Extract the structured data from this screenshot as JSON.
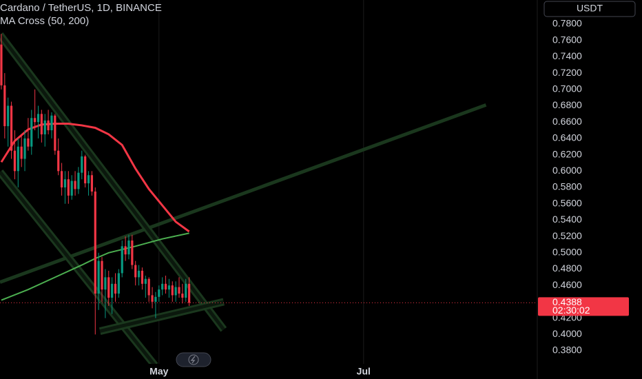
{
  "chart_data": {
    "type": "candlestick",
    "title": "Cardano / TetherUS, 1D, BINANCE",
    "indicator": "MA Cross (50, 200)",
    "currency": "USDT",
    "last_price": {
      "value": 0.4388,
      "label": "0.4388"
    },
    "countdown": "02:30:02",
    "up_color": "#089981",
    "down_color": "#f23645",
    "x": [
      0,
      1,
      2,
      3,
      4,
      5,
      6,
      7,
      8,
      9,
      10,
      11,
      12,
      13,
      14,
      15,
      16,
      17,
      18,
      19,
      20,
      21,
      22,
      23,
      24,
      25,
      26,
      27,
      28,
      29,
      30,
      31,
      32,
      33,
      34,
      35,
      36,
      37,
      38,
      39,
      40,
      41,
      42,
      43,
      44,
      45,
      46,
      47,
      48,
      49,
      50,
      51,
      52,
      53,
      54,
      55,
      56
    ],
    "ohlc": [
      [
        0.755,
        0.768,
        0.7,
        0.705
      ],
      [
        0.705,
        0.72,
        0.64,
        0.655
      ],
      [
        0.655,
        0.69,
        0.63,
        0.68
      ],
      [
        0.68,
        0.685,
        0.615,
        0.625
      ],
      [
        0.625,
        0.65,
        0.59,
        0.6
      ],
      [
        0.6,
        0.64,
        0.58,
        0.63
      ],
      [
        0.63,
        0.645,
        0.605,
        0.615
      ],
      [
        0.615,
        0.65,
        0.6,
        0.64
      ],
      [
        0.64,
        0.665,
        0.625,
        0.63
      ],
      [
        0.63,
        0.675,
        0.62,
        0.665
      ],
      [
        0.665,
        0.7,
        0.65,
        0.66
      ],
      [
        0.66,
        0.68,
        0.64,
        0.67
      ],
      [
        0.67,
        0.675,
        0.635,
        0.645
      ],
      [
        0.645,
        0.67,
        0.63,
        0.662
      ],
      [
        0.662,
        0.675,
        0.645,
        0.65
      ],
      [
        0.65,
        0.672,
        0.64,
        0.668
      ],
      [
        0.668,
        0.67,
        0.62,
        0.625
      ],
      [
        0.625,
        0.64,
        0.595,
        0.6
      ],
      [
        0.6,
        0.61,
        0.57,
        0.58
      ],
      [
        0.58,
        0.6,
        0.56,
        0.59
      ],
      [
        0.59,
        0.6,
        0.56,
        0.57
      ],
      [
        0.57,
        0.595,
        0.565,
        0.588
      ],
      [
        0.588,
        0.6,
        0.57,
        0.578
      ],
      [
        0.578,
        0.605,
        0.572,
        0.598
      ],
      [
        0.598,
        0.625,
        0.59,
        0.618
      ],
      [
        0.618,
        0.62,
        0.58,
        0.585
      ],
      [
        0.585,
        0.6,
        0.57,
        0.595
      ],
      [
        0.595,
        0.6,
        0.57,
        0.575
      ],
      [
        0.575,
        0.58,
        0.4,
        0.45
      ],
      [
        0.45,
        0.5,
        0.43,
        0.49
      ],
      [
        0.49,
        0.495,
        0.44,
        0.455
      ],
      [
        0.455,
        0.48,
        0.42,
        0.47
      ],
      [
        0.47,
        0.478,
        0.435,
        0.445
      ],
      [
        0.445,
        0.47,
        0.425,
        0.462
      ],
      [
        0.462,
        0.475,
        0.44,
        0.45
      ],
      [
        0.45,
        0.48,
        0.445,
        0.475
      ],
      [
        0.475,
        0.515,
        0.47,
        0.508
      ],
      [
        0.508,
        0.52,
        0.49,
        0.498
      ],
      [
        0.498,
        0.522,
        0.492,
        0.515
      ],
      [
        0.515,
        0.522,
        0.48,
        0.485
      ],
      [
        0.485,
        0.49,
        0.46,
        0.47
      ],
      [
        0.47,
        0.485,
        0.46,
        0.478
      ],
      [
        0.478,
        0.482,
        0.455,
        0.462
      ],
      [
        0.462,
        0.472,
        0.445,
        0.468
      ],
      [
        0.468,
        0.47,
        0.44,
        0.448
      ],
      [
        0.448,
        0.458,
        0.432,
        0.44
      ],
      [
        0.44,
        0.452,
        0.42,
        0.446
      ],
      [
        0.446,
        0.46,
        0.44,
        0.455
      ],
      [
        0.455,
        0.47,
        0.448,
        0.462
      ],
      [
        0.462,
        0.472,
        0.45,
        0.455
      ],
      [
        0.455,
        0.468,
        0.445,
        0.46
      ],
      [
        0.46,
        0.465,
        0.44,
        0.448
      ],
      [
        0.448,
        0.465,
        0.44,
        0.458
      ],
      [
        0.458,
        0.47,
        0.445,
        0.45
      ],
      [
        0.45,
        0.462,
        0.438,
        0.445
      ],
      [
        0.445,
        0.468,
        0.44,
        0.462
      ],
      [
        0.462,
        0.47,
        0.435,
        0.4388
      ]
    ],
    "series": [
      {
        "color": "#f23645",
        "x": [
          0,
          4,
          8,
          12,
          16,
          20,
          24,
          28,
          32,
          36,
          40,
          44,
          48,
          52,
          56
        ],
        "values": [
          0.611,
          0.637,
          0.651,
          0.657,
          0.658,
          0.658,
          0.656,
          0.653,
          0.645,
          0.632,
          0.603,
          0.578,
          0.558,
          0.538,
          0.526
        ]
      },
      {
        "color": "#4caf50",
        "x": [
          0,
          8,
          16,
          24,
          28,
          32,
          40,
          48,
          56
        ],
        "values": [
          0.442,
          0.455,
          0.47,
          0.485,
          0.493,
          0.5,
          0.508,
          0.517,
          0.524
        ]
      }
    ],
    "trendlines": [
      {
        "color": "#1b3a1f",
        "x": [
          -0.4,
          144.5
        ],
        "y": [
          0.464,
          0.681
        ]
      },
      {
        "color": "#1b3a1f",
        "x": [
          -0.4,
          66.3
        ],
        "y": [
          0.767,
          0.406
        ]
      },
      {
        "color": "#1b3a1f",
        "x": [
          -0.4,
          45.8
        ],
        "y": [
          0.599,
          0.362
        ]
      },
      {
        "color": "#1b3a1f",
        "x": [
          29.4,
          66.3
        ],
        "y": [
          0.404,
          0.44
        ]
      }
    ],
    "xlim": [
      -0.4,
      159.8
    ],
    "ylim": [
      0.364,
      0.8095
    ],
    "xticks": [
      {
        "value": 47,
        "label": "May"
      },
      {
        "value": 108,
        "label": "Jul"
      }
    ],
    "yticks": [
      {
        "value": 0.38,
        "label": "0.3800"
      },
      {
        "value": 0.4,
        "label": "0.4000"
      },
      {
        "value": 0.42,
        "label": "0.4200"
      },
      {
        "value": 0.46,
        "label": "0.4600"
      },
      {
        "value": 0.48,
        "label": "0.4800"
      },
      {
        "value": 0.5,
        "label": "0.5000"
      },
      {
        "value": 0.52,
        "label": "0.5200"
      },
      {
        "value": 0.54,
        "label": "0.5400"
      },
      {
        "value": 0.56,
        "label": "0.5600"
      },
      {
        "value": 0.58,
        "label": "0.5800"
      },
      {
        "value": 0.6,
        "label": "0.6000"
      },
      {
        "value": 0.62,
        "label": "0.6200"
      },
      {
        "value": 0.64,
        "label": "0.6400"
      },
      {
        "value": 0.66,
        "label": "0.6600"
      },
      {
        "value": 0.68,
        "label": "0.6800"
      },
      {
        "value": 0.7,
        "label": "0.7000"
      },
      {
        "value": 0.72,
        "label": "0.7200"
      },
      {
        "value": 0.74,
        "label": "0.7400"
      },
      {
        "value": 0.76,
        "label": "0.7600"
      },
      {
        "value": 0.78,
        "label": "0.7800"
      }
    ]
  }
}
